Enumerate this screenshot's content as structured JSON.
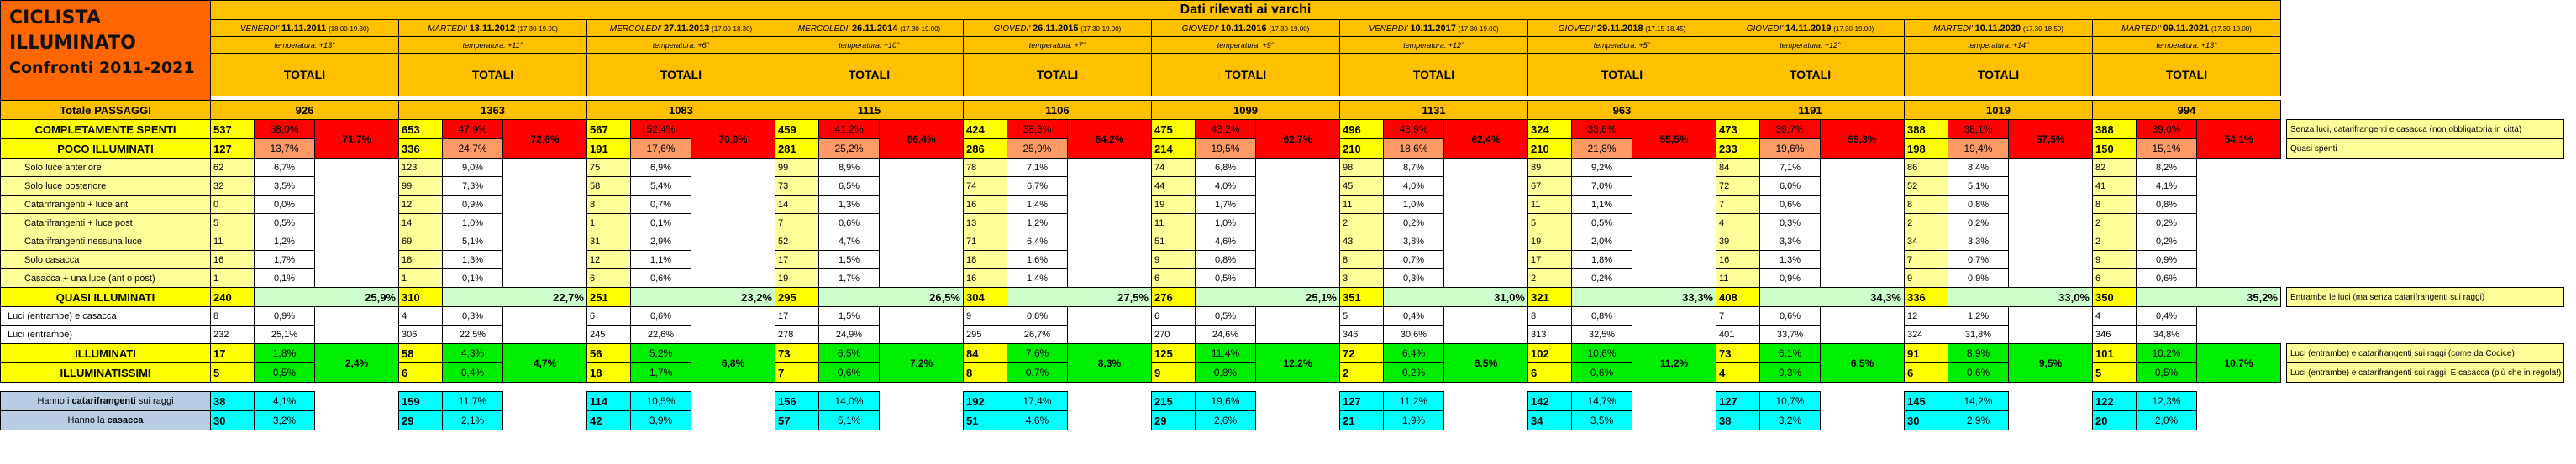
{
  "title_lines": [
    "CICLISTA",
    "ILLUMINATO",
    "Confronti 2011-2021"
  ],
  "header_title": "Dati rilevati ai varchi",
  "columns": [
    {
      "day": "VENERDI'",
      "date": "11.11.2011",
      "time": "(18.00-19.30)",
      "temp": "temperatura: +13°",
      "tot": "TOTALI",
      "passaggi": "926",
      "spenti": "537",
      "spenti_pct": "58,0%",
      "merged_pct": "71,7%",
      "poco": "127",
      "poco_pct": "13,7%",
      "sub": [
        [
          "62",
          "6,7%"
        ],
        [
          "32",
          "3,5%"
        ],
        [
          "0",
          "0,0%"
        ],
        [
          "5",
          "0,5%"
        ],
        [
          "11",
          "1,2%"
        ],
        [
          "16",
          "1,7%"
        ],
        [
          "1",
          "0,1%"
        ]
      ],
      "quasi": "240",
      "quasi_pct": "25,9%",
      "qsub": [
        [
          "8",
          "0,9%"
        ],
        [
          "232",
          "25,1%"
        ]
      ],
      "ill": "17",
      "ill_pct": "1,8%",
      "ill_merged": "2,4%",
      "illt": "5",
      "illt_pct": "0,5%",
      "cat": "38",
      "cat_pct": "4,1%",
      "cas": "30",
      "cas_pct": "3,2%"
    },
    {
      "day": "MARTEDI'",
      "date": "13.11.2012",
      "time": "(17.30-19.00)",
      "temp": "temperatura: +11°",
      "tot": "TOTALI",
      "passaggi": "1363",
      "spenti": "653",
      "spenti_pct": "47,9%",
      "merged_pct": "72,6%",
      "poco": "336",
      "poco_pct": "24,7%",
      "sub": [
        [
          "123",
          "9,0%"
        ],
        [
          "99",
          "7,3%"
        ],
        [
          "12",
          "0,9%"
        ],
        [
          "14",
          "1,0%"
        ],
        [
          "69",
          "5,1%"
        ],
        [
          "18",
          "1,3%"
        ],
        [
          "1",
          "0,1%"
        ]
      ],
      "quasi": "310",
      "quasi_pct": "22,7%",
      "qsub": [
        [
          "4",
          "0,3%"
        ],
        [
          "306",
          "22,5%"
        ]
      ],
      "ill": "58",
      "ill_pct": "4,3%",
      "ill_merged": "4,7%",
      "illt": "6",
      "illt_pct": "0,4%",
      "cat": "159",
      "cat_pct": "11,7%",
      "cas": "29",
      "cas_pct": "2,1%"
    },
    {
      "day": "MERCOLEDI'",
      "date": "27.11.2013",
      "time": "(17.00-18.30)",
      "temp": "temperatura: +6°",
      "tot": "TOTALI",
      "passaggi": "1083",
      "spenti": "567",
      "spenti_pct": "52,4%",
      "merged_pct": "70,0%",
      "poco": "191",
      "poco_pct": "17,6%",
      "sub": [
        [
          "75",
          "6,9%"
        ],
        [
          "58",
          "5,4%"
        ],
        [
          "8",
          "0,7%"
        ],
        [
          "1",
          "0,1%"
        ],
        [
          "31",
          "2,9%"
        ],
        [
          "12",
          "1,1%"
        ],
        [
          "6",
          "0,6%"
        ]
      ],
      "quasi": "251",
      "quasi_pct": "23,2%",
      "qsub": [
        [
          "6",
          "0,6%"
        ],
        [
          "245",
          "22,6%"
        ]
      ],
      "ill": "56",
      "ill_pct": "5,2%",
      "ill_merged": "6,8%",
      "illt": "18",
      "illt_pct": "1,7%",
      "cat": "114",
      "cat_pct": "10,5%",
      "cas": "42",
      "cas_pct": "3,9%"
    },
    {
      "day": "MERCOLEDI'",
      "date": "26.11.2014",
      "time": "(17.30-19.00)",
      "temp": "temperatura: +10°",
      "tot": "TOTALI",
      "passaggi": "1115",
      "spenti": "459",
      "spenti_pct": "41,2%",
      "merged_pct": "66,4%",
      "poco": "281",
      "poco_pct": "25,2%",
      "sub": [
        [
          "99",
          "8,9%"
        ],
        [
          "73",
          "6,5%"
        ],
        [
          "14",
          "1,3%"
        ],
        [
          "7",
          "0,6%"
        ],
        [
          "52",
          "4,7%"
        ],
        [
          "17",
          "1,5%"
        ],
        [
          "19",
          "1,7%"
        ]
      ],
      "quasi": "295",
      "quasi_pct": "26,5%",
      "qsub": [
        [
          "17",
          "1,5%"
        ],
        [
          "278",
          "24,9%"
        ]
      ],
      "ill": "73",
      "ill_pct": "6,5%",
      "ill_merged": "7,2%",
      "illt": "7",
      "illt_pct": "0,6%",
      "cat": "156",
      "cat_pct": "14,0%",
      "cas": "57",
      "cas_pct": "5,1%"
    },
    {
      "day": "GIOVEDI'",
      "date": "26.11.2015",
      "time": "(17.30-19.00)",
      "temp": "temperatura: +7°",
      "tot": "TOTALI",
      "passaggi": "1106",
      "spenti": "424",
      "spenti_pct": "38,3%",
      "merged_pct": "64,2%",
      "poco": "286",
      "poco_pct": "25,9%",
      "sub": [
        [
          "78",
          "7,1%"
        ],
        [
          "74",
          "6,7%"
        ],
        [
          "16",
          "1,4%"
        ],
        [
          "13",
          "1,2%"
        ],
        [
          "71",
          "6,4%"
        ],
        [
          "18",
          "1,6%"
        ],
        [
          "16",
          "1,4%"
        ]
      ],
      "quasi": "304",
      "quasi_pct": "27,5%",
      "qsub": [
        [
          "9",
          "0,8%"
        ],
        [
          "295",
          "26,7%"
        ]
      ],
      "ill": "84",
      "ill_pct": "7,6%",
      "ill_merged": "8,3%",
      "illt": "8",
      "illt_pct": "0,7%",
      "cat": "192",
      "cat_pct": "17,4%",
      "cas": "51",
      "cas_pct": "4,6%"
    },
    {
      "day": "GIOVEDI'",
      "date": "10.11.2016",
      "time": "(17.30-19.00)",
      "temp": "temperatura: +9°",
      "tot": "TOTALI",
      "passaggi": "1099",
      "spenti": "475",
      "spenti_pct": "43,2%",
      "merged_pct": "62,7%",
      "poco": "214",
      "poco_pct": "19,5%",
      "sub": [
        [
          "74",
          "6,8%"
        ],
        [
          "44",
          "4,0%"
        ],
        [
          "19",
          "1,7%"
        ],
        [
          "11",
          "1,0%"
        ],
        [
          "51",
          "4,6%"
        ],
        [
          "9",
          "0,8%"
        ],
        [
          "6",
          "0,5%"
        ]
      ],
      "quasi": "276",
      "quasi_pct": "25,1%",
      "qsub": [
        [
          "6",
          "0,5%"
        ],
        [
          "270",
          "24,6%"
        ]
      ],
      "ill": "125",
      "ill_pct": "11,4%",
      "ill_merged": "12,2%",
      "illt": "9",
      "illt_pct": "0,8%",
      "cat": "215",
      "cat_pct": "19,6%",
      "cas": "29",
      "cas_pct": "2,6%"
    },
    {
      "day": "VENERDI'",
      "date": "10.11.2017",
      "time": "(17.30-19.00)",
      "temp": "temperatura: +12°",
      "tot": "TOTALI",
      "passaggi": "1131",
      "spenti": "496",
      "spenti_pct": "43,9%",
      "merged_pct": "62,4%",
      "poco": "210",
      "poco_pct": "18,6%",
      "sub": [
        [
          "98",
          "8,7%"
        ],
        [
          "45",
          "4,0%"
        ],
        [
          "11",
          "1,0%"
        ],
        [
          "2",
          "0,2%"
        ],
        [
          "43",
          "3,8%"
        ],
        [
          "8",
          "0,7%"
        ],
        [
          "3",
          "0,3%"
        ]
      ],
      "quasi": "351",
      "quasi_pct": "31,0%",
      "qsub": [
        [
          "5",
          "0,4%"
        ],
        [
          "346",
          "30,6%"
        ]
      ],
      "ill": "72",
      "ill_pct": "6,4%",
      "ill_merged": "6,5%",
      "illt": "2",
      "illt_pct": "0,2%",
      "cat": "127",
      "cat_pct": "11,2%",
      "cas": "21",
      "cas_pct": "1,9%"
    },
    {
      "day": "GIOVEDI'",
      "date": "29.11.2018",
      "time": "(17.15-18.45)",
      "temp": "temperatura: +5°",
      "tot": "TOTALI",
      "passaggi": "963",
      "spenti": "324",
      "spenti_pct": "33,6%",
      "merged_pct": "55,5%",
      "poco": "210",
      "poco_pct": "21,8%",
      "sub": [
        [
          "89",
          "9,2%"
        ],
        [
          "67",
          "7,0%"
        ],
        [
          "11",
          "1,1%"
        ],
        [
          "5",
          "0,5%"
        ],
        [
          "19",
          "2,0%"
        ],
        [
          "17",
          "1,8%"
        ],
        [
          "2",
          "0,2%"
        ]
      ],
      "quasi": "321",
      "quasi_pct": "33,3%",
      "qsub": [
        [
          "8",
          "0,8%"
        ],
        [
          "313",
          "32,5%"
        ]
      ],
      "ill": "102",
      "ill_pct": "10,6%",
      "ill_merged": "11,2%",
      "illt": "6",
      "illt_pct": "0,6%",
      "cat": "142",
      "cat_pct": "14,7%",
      "cas": "34",
      "cas_pct": "3,5%"
    },
    {
      "day": "GIOVEDI'",
      "date": "14.11.2019",
      "time": "(17.30-19.00)",
      "temp": "temperatura: +12°",
      "tot": "TOTALI",
      "passaggi": "1191",
      "spenti": "473",
      "spenti_pct": "39,7%",
      "merged_pct": "59,3%",
      "poco": "233",
      "poco_pct": "19,6%",
      "sub": [
        [
          "84",
          "7,1%"
        ],
        [
          "72",
          "6,0%"
        ],
        [
          "7",
          "0,6%"
        ],
        [
          "4",
          "0,3%"
        ],
        [
          "39",
          "3,3%"
        ],
        [
          "16",
          "1,3%"
        ],
        [
          "11",
          "0,9%"
        ]
      ],
      "quasi": "408",
      "quasi_pct": "34,3%",
      "qsub": [
        [
          "7",
          "0,6%"
        ],
        [
          "401",
          "33,7%"
        ]
      ],
      "ill": "73",
      "ill_pct": "6,1%",
      "ill_merged": "6,5%",
      "illt": "4",
      "illt_pct": "0,3%",
      "cat": "127",
      "cat_pct": "10,7%",
      "cas": "38",
      "cas_pct": "3,2%"
    },
    {
      "day": "MARTEDI'",
      "date": "10.11.2020",
      "time": "(17.30-18.50)",
      "temp": "temperatura: +14°",
      "tot": "TOTALI",
      "passaggi": "1019",
      "spenti": "388",
      "spenti_pct": "38,1%",
      "merged_pct": "57,5%",
      "poco": "198",
      "poco_pct": "19,4%",
      "sub": [
        [
          "86",
          "8,4%"
        ],
        [
          "52",
          "5,1%"
        ],
        [
          "8",
          "0,8%"
        ],
        [
          "2",
          "0,2%"
        ],
        [
          "34",
          "3,3%"
        ],
        [
          "7",
          "0,7%"
        ],
        [
          "9",
          "0,9%"
        ]
      ],
      "quasi": "336",
      "quasi_pct": "33,0%",
      "qsub": [
        [
          "12",
          "1,2%"
        ],
        [
          "324",
          "31,8%"
        ]
      ],
      "ill": "91",
      "ill_pct": "8,9%",
      "ill_merged": "9,5%",
      "illt": "6",
      "illt_pct": "0,6%",
      "cat": "145",
      "cat_pct": "14,2%",
      "cas": "30",
      "cas_pct": "2,9%"
    },
    {
      "day": "MARTEDI'",
      "date": "09.11.2021",
      "time": "(17.30-19.00)",
      "temp": "temperatura: +13°",
      "tot": "TOTALI",
      "passaggi": "994",
      "spenti": "388",
      "spenti_pct": "39,0%",
      "merged_pct": "54,1%",
      "poco": "150",
      "poco_pct": "15,1%",
      "sub": [
        [
          "82",
          "8,2%"
        ],
        [
          "41",
          "4,1%"
        ],
        [
          "8",
          "0,8%"
        ],
        [
          "2",
          "0,2%"
        ],
        [
          "2",
          "0,2%"
        ],
        [
          "9",
          "0,9%"
        ],
        [
          "6",
          "0,6%"
        ]
      ],
      "quasi": "350",
      "quasi_pct": "35,2%",
      "qsub": [
        [
          "4",
          "0,4%"
        ],
        [
          "346",
          "34,8%"
        ]
      ],
      "ill": "101",
      "ill_pct": "10,2%",
      "ill_merged": "10,7%",
      "illt": "5",
      "illt_pct": "0,5%",
      "cat": "122",
      "cat_pct": "12,3%",
      "cas": "20",
      "cas_pct": "2,0%"
    }
  ],
  "row_labels": {
    "passaggi": "Totale PASSAGGI",
    "spenti": "COMPLETAMENTE SPENTI",
    "poco": "POCO ILLUMINATI",
    "sub": [
      "Solo luce anteriore",
      "Solo luce posteriore",
      "Catarifrangenti + luce ant",
      "Catarifrangenti + luce post",
      "Catarifrangenti nessuna luce",
      "Solo casacca",
      "Casacca + una luce (ant o post)"
    ],
    "quasi": "QUASI ILLUMINATI",
    "qsub": [
      "Luci (entrambe) e casacca",
      "Luci (entrambe)"
    ],
    "ill": "ILLUMINATI",
    "illt": "ILLUMINATISSIMI",
    "cat_pre": "Hanno i ",
    "cat_b": "catarifrangenti",
    "cat_post": " sui raggi",
    "cas_pre": "Hanno la ",
    "cas_b": "casacca"
  },
  "notes": {
    "spenti": "Senza luci, catarifrangenti e casacca (non obbligatoria in città)",
    "poco": "Quasi spenti",
    "quasi": "Entrambe le luci (ma senza catarifrangenti sui raggi)",
    "ill": "Luci (entrambe) e catarifrangenti sui raggi (come da Codice)",
    "illt": "Luci (entrambe) e catarifrangenti sui raggi. E casacca (più che in regola!)"
  }
}
